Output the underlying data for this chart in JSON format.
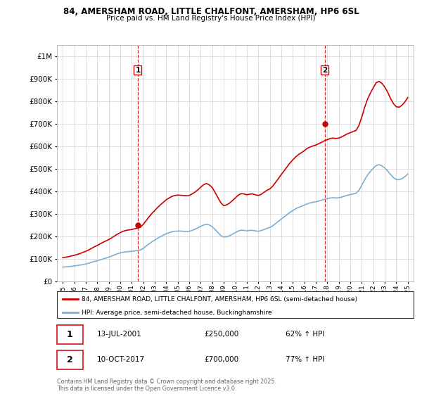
{
  "title1": "84, AMERSHAM ROAD, LITTLE CHALFONT, AMERSHAM, HP6 6SL",
  "title2": "Price paid vs. HM Land Registry's House Price Index (HPI)",
  "ytick_vals": [
    0,
    100000,
    200000,
    300000,
    400000,
    500000,
    600000,
    700000,
    800000,
    900000,
    1000000
  ],
  "ylim": [
    0,
    1050000
  ],
  "xlim_start": 1994.5,
  "xlim_end": 2025.5,
  "xticks": [
    1995,
    1996,
    1997,
    1998,
    1999,
    2000,
    2001,
    2002,
    2003,
    2004,
    2005,
    2006,
    2007,
    2008,
    2009,
    2010,
    2011,
    2012,
    2013,
    2014,
    2015,
    2016,
    2017,
    2018,
    2019,
    2020,
    2021,
    2022,
    2023,
    2024,
    2025
  ],
  "sale1_x": 2001.53,
  "sale1_y": 250000,
  "sale1_label": "1",
  "sale1_date": "13-JUL-2001",
  "sale1_price": "£250,000",
  "sale1_hpi": "62% ↑ HPI",
  "sale2_x": 2017.78,
  "sale2_y": 700000,
  "sale2_label": "2",
  "sale2_date": "10-OCT-2017",
  "sale2_price": "£700,000",
  "sale2_hpi": "77% ↑ HPI",
  "line1_color": "#cc0000",
  "line2_color": "#7bafd4",
  "vline_color": "#cc0000",
  "bg_color": "#ffffff",
  "grid_color": "#d8d8d8",
  "legend1_label": "84, AMERSHAM ROAD, LITTLE CHALFONT, AMERSHAM, HP6 6SL (semi-detached house)",
  "legend2_label": "HPI: Average price, semi-detached house, Buckinghamshire",
  "footnote": "Contains HM Land Registry data © Crown copyright and database right 2025.\nThis data is licensed under the Open Government Licence v3.0.",
  "hpi_data_x": [
    1995.0,
    1995.25,
    1995.5,
    1995.75,
    1996.0,
    1996.25,
    1996.5,
    1996.75,
    1997.0,
    1997.25,
    1997.5,
    1997.75,
    1998.0,
    1998.25,
    1998.5,
    1998.75,
    1999.0,
    1999.25,
    1999.5,
    1999.75,
    2000.0,
    2000.25,
    2000.5,
    2000.75,
    2001.0,
    2001.25,
    2001.5,
    2001.75,
    2002.0,
    2002.25,
    2002.5,
    2002.75,
    2003.0,
    2003.25,
    2003.5,
    2003.75,
    2004.0,
    2004.25,
    2004.5,
    2004.75,
    2005.0,
    2005.25,
    2005.5,
    2005.75,
    2006.0,
    2006.25,
    2006.5,
    2006.75,
    2007.0,
    2007.25,
    2007.5,
    2007.75,
    2008.0,
    2008.25,
    2008.5,
    2008.75,
    2009.0,
    2009.25,
    2009.5,
    2009.75,
    2010.0,
    2010.25,
    2010.5,
    2010.75,
    2011.0,
    2011.25,
    2011.5,
    2011.75,
    2012.0,
    2012.25,
    2012.5,
    2012.75,
    2013.0,
    2013.25,
    2013.5,
    2013.75,
    2014.0,
    2014.25,
    2014.5,
    2014.75,
    2015.0,
    2015.25,
    2015.5,
    2015.75,
    2016.0,
    2016.25,
    2016.5,
    2016.75,
    2017.0,
    2017.25,
    2017.5,
    2017.75,
    2018.0,
    2018.25,
    2018.5,
    2018.75,
    2019.0,
    2019.25,
    2019.5,
    2019.75,
    2020.0,
    2020.25,
    2020.5,
    2020.75,
    2021.0,
    2021.25,
    2021.5,
    2021.75,
    2022.0,
    2022.25,
    2022.5,
    2022.75,
    2023.0,
    2023.25,
    2023.5,
    2023.75,
    2024.0,
    2024.25,
    2024.5,
    2024.75,
    2025.0
  ],
  "hpi_data_y": [
    65000,
    66000,
    67000,
    68000,
    70000,
    72000,
    74000,
    76000,
    79000,
    82000,
    86000,
    90000,
    93000,
    97000,
    101000,
    105000,
    109000,
    114000,
    119000,
    124000,
    128000,
    131000,
    133000,
    134000,
    135000,
    137000,
    139000,
    141000,
    148000,
    158000,
    168000,
    177000,
    185000,
    193000,
    200000,
    207000,
    213000,
    218000,
    222000,
    224000,
    225000,
    225000,
    224000,
    223000,
    224000,
    228000,
    233000,
    239000,
    246000,
    252000,
    255000,
    252000,
    244000,
    232000,
    218000,
    205000,
    198000,
    200000,
    204000,
    211000,
    218000,
    225000,
    229000,
    228000,
    226000,
    228000,
    228000,
    226000,
    224000,
    227000,
    232000,
    237000,
    241000,
    248000,
    258000,
    268000,
    278000,
    288000,
    298000,
    308000,
    316000,
    324000,
    330000,
    335000,
    340000,
    346000,
    350000,
    353000,
    355000,
    358000,
    362000,
    366000,
    369000,
    372000,
    373000,
    372000,
    373000,
    376000,
    380000,
    384000,
    387000,
    390000,
    393000,
    406000,
    428000,
    453000,
    474000,
    490000,
    504000,
    516000,
    520000,
    515000,
    505000,
    492000,
    476000,
    462000,
    454000,
    453000,
    458000,
    467000,
    478000
  ],
  "prop_data_x": [
    1995.0,
    1995.25,
    1995.5,
    1995.75,
    1996.0,
    1996.25,
    1996.5,
    1996.75,
    1997.0,
    1997.25,
    1997.5,
    1997.75,
    1998.0,
    1998.25,
    1998.5,
    1998.75,
    1999.0,
    1999.25,
    1999.5,
    1999.75,
    2000.0,
    2000.25,
    2000.5,
    2000.75,
    2001.0,
    2001.25,
    2001.5,
    2001.75,
    2002.0,
    2002.25,
    2002.5,
    2002.75,
    2003.0,
    2003.25,
    2003.5,
    2003.75,
    2004.0,
    2004.25,
    2004.5,
    2004.75,
    2005.0,
    2005.25,
    2005.5,
    2005.75,
    2006.0,
    2006.25,
    2006.5,
    2006.75,
    2007.0,
    2007.25,
    2007.5,
    2007.75,
    2008.0,
    2008.25,
    2008.5,
    2008.75,
    2009.0,
    2009.25,
    2009.5,
    2009.75,
    2010.0,
    2010.25,
    2010.5,
    2010.75,
    2011.0,
    2011.25,
    2011.5,
    2011.75,
    2012.0,
    2012.25,
    2012.5,
    2012.75,
    2013.0,
    2013.25,
    2013.5,
    2013.75,
    2014.0,
    2014.25,
    2014.5,
    2014.75,
    2015.0,
    2015.25,
    2015.5,
    2015.75,
    2016.0,
    2016.25,
    2016.5,
    2016.75,
    2017.0,
    2017.25,
    2017.5,
    2017.75,
    2018.0,
    2018.25,
    2018.5,
    2018.75,
    2019.0,
    2019.25,
    2019.5,
    2019.75,
    2020.0,
    2020.25,
    2020.5,
    2020.75,
    2021.0,
    2021.25,
    2021.5,
    2021.75,
    2022.0,
    2022.25,
    2022.5,
    2022.75,
    2023.0,
    2023.25,
    2023.5,
    2023.75,
    2024.0,
    2024.25,
    2024.5,
    2024.75,
    2025.0
  ],
  "prop_data_y": [
    107000,
    109000,
    111000,
    114000,
    117000,
    121000,
    125000,
    130000,
    135000,
    141000,
    148000,
    155000,
    161000,
    168000,
    175000,
    181000,
    187000,
    195000,
    203000,
    211000,
    218000,
    224000,
    228000,
    230000,
    232000,
    235000,
    238000,
    242000,
    255000,
    271000,
    288000,
    303000,
    316000,
    330000,
    342000,
    353000,
    364000,
    372000,
    379000,
    383000,
    385000,
    384000,
    383000,
    382000,
    383000,
    390000,
    398000,
    408000,
    420000,
    431000,
    436000,
    430000,
    418000,
    396000,
    373000,
    350000,
    338000,
    341000,
    349000,
    360000,
    372000,
    384000,
    391000,
    390000,
    386000,
    389000,
    390000,
    386000,
    383000,
    388000,
    397000,
    406000,
    412000,
    424000,
    441000,
    458000,
    476000,
    493000,
    510000,
    527000,
    541000,
    554000,
    565000,
    573000,
    582000,
    592000,
    598000,
    603000,
    607000,
    613000,
    619000,
    626000,
    631000,
    636000,
    638000,
    636000,
    638000,
    643000,
    650000,
    657000,
    662000,
    667000,
    672000,
    694000,
    732000,
    775000,
    811000,
    838000,
    862000,
    884000,
    890000,
    881000,
    864000,
    842000,
    814000,
    791000,
    777000,
    775000,
    784000,
    799000,
    818000
  ]
}
